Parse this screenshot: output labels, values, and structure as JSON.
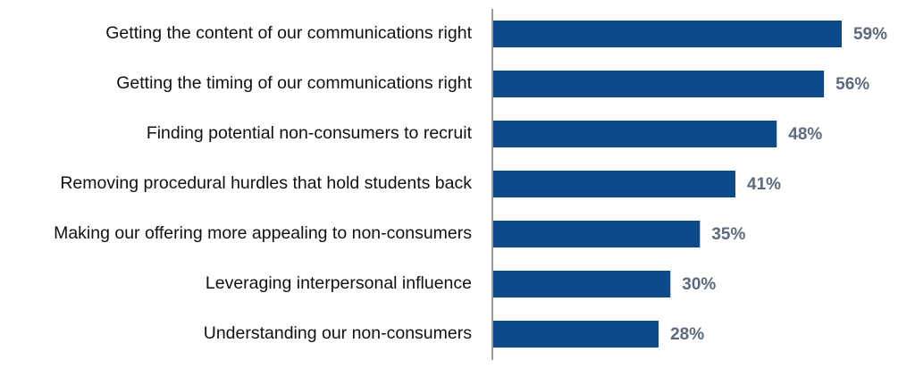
{
  "chart_data": {
    "type": "bar",
    "orientation": "horizontal",
    "categories": [
      "Getting the content of our communications right",
      "Getting the timing of our communications right",
      "Finding potential non-consumers to recruit",
      "Removing procedural hurdles that hold students back",
      "Making our offering more appealing to non-consumers",
      "Leveraging interpersonal influence",
      "Understanding our non-consumers"
    ],
    "values": [
      59,
      56,
      48,
      41,
      35,
      30,
      28
    ],
    "value_labels": [
      "59%",
      "56%",
      "48%",
      "41%",
      "35%",
      "30%",
      "28%"
    ],
    "color": "#0d4a8a"
  }
}
